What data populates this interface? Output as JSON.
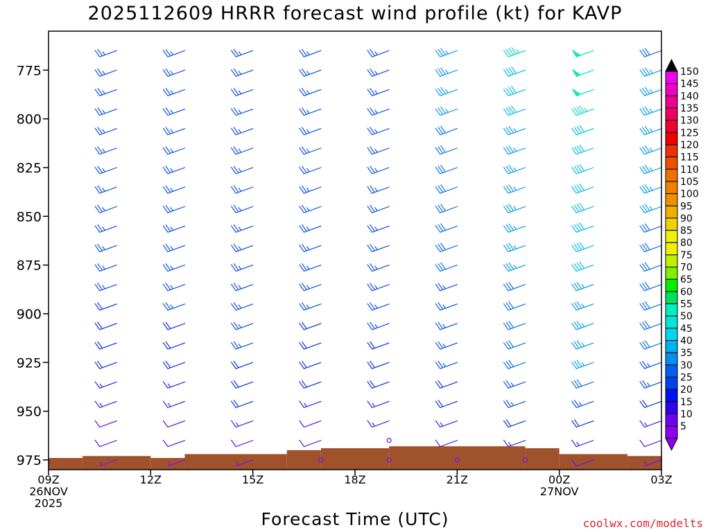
{
  "chart_data": {
    "type": "wind-barb-profile",
    "title": "2025112609 HRRR forecast wind profile (kt) for KAVP",
    "xlabel": "Forecast Time (UTC)",
    "ylabel": "",
    "credit": "coolwx.com/modelts",
    "x_ticks": [
      {
        "hour": 0,
        "lines": [
          "09Z",
          "26NOV",
          "2025"
        ]
      },
      {
        "hour": 3,
        "lines": [
          "12Z"
        ]
      },
      {
        "hour": 6,
        "lines": [
          "15Z"
        ]
      },
      {
        "hour": 9,
        "lines": [
          "18Z"
        ]
      },
      {
        "hour": 12,
        "lines": [
          "21Z"
        ]
      },
      {
        "hour": 15,
        "lines": [
          "00Z",
          "27NOV"
        ]
      },
      {
        "hour": 18,
        "lines": [
          "03Z"
        ]
      }
    ],
    "xlim": [
      0,
      18
    ],
    "ylim": [
      755,
      980
    ],
    "y_ticks": [
      775,
      800,
      825,
      850,
      875,
      900,
      925,
      950,
      975
    ],
    "barb_times": [
      2,
      4,
      6,
      8,
      10,
      12,
      14,
      16,
      18
    ],
    "pressure_levels": [
      765,
      775,
      785,
      795,
      805,
      815,
      825,
      835,
      845,
      855,
      865,
      875,
      885,
      895,
      905,
      915,
      925,
      935,
      945,
      955,
      965,
      975
    ],
    "wind_direction_deg": 250,
    "wind_speed_kt": [
      [
        25,
        25,
        25,
        25,
        25,
        25,
        25,
        25,
        25,
        25,
        25,
        25,
        25,
        20,
        20,
        20,
        20,
        15,
        15,
        10,
        10,
        5
      ],
      [
        25,
        25,
        25,
        25,
        25,
        25,
        25,
        25,
        25,
        25,
        25,
        25,
        25,
        25,
        20,
        20,
        20,
        15,
        15,
        10,
        10,
        5
      ],
      [
        25,
        25,
        25,
        25,
        25,
        25,
        25,
        25,
        25,
        25,
        25,
        25,
        25,
        25,
        25,
        25,
        20,
        20,
        20,
        15,
        10,
        5
      ],
      [
        25,
        25,
        25,
        25,
        25,
        25,
        25,
        25,
        25,
        25,
        25,
        25,
        25,
        25,
        20,
        20,
        20,
        20,
        15,
        10,
        10,
        0
      ],
      [
        25,
        25,
        25,
        25,
        25,
        25,
        25,
        25,
        25,
        25,
        25,
        25,
        25,
        25,
        25,
        20,
        20,
        20,
        15,
        15,
        0,
        0
      ],
      [
        35,
        35,
        35,
        35,
        30,
        30,
        30,
        30,
        30,
        30,
        30,
        30,
        25,
        25,
        25,
        25,
        25,
        20,
        20,
        15,
        10,
        0
      ],
      [
        45,
        40,
        40,
        40,
        35,
        35,
        35,
        35,
        35,
        35,
        35,
        35,
        30,
        30,
        30,
        30,
        30,
        25,
        25,
        20,
        15,
        0
      ],
      [
        50,
        50,
        50,
        45,
        40,
        40,
        40,
        40,
        40,
        40,
        40,
        40,
        35,
        35,
        35,
        35,
        35,
        30,
        25,
        20,
        15,
        10
      ],
      [
        30,
        35,
        35,
        35,
        35,
        35,
        35,
        35,
        35,
        30,
        30,
        30,
        30,
        30,
        30,
        30,
        25,
        25,
        20,
        15,
        10,
        5
      ]
    ],
    "terrain_surface": [
      {
        "from": 0,
        "to": 1,
        "p": 974
      },
      {
        "from": 1,
        "to": 3,
        "p": 973
      },
      {
        "from": 3,
        "to": 4,
        "p": 974
      },
      {
        "from": 4,
        "to": 7,
        "p": 972
      },
      {
        "from": 7,
        "to": 8,
        "p": 970
      },
      {
        "from": 8,
        "to": 10,
        "p": 969
      },
      {
        "from": 10,
        "to": 14,
        "p": 968
      },
      {
        "from": 14,
        "to": 15,
        "p": 969
      },
      {
        "from": 15,
        "to": 17,
        "p": 972
      },
      {
        "from": 17,
        "to": 18,
        "p": 973
      }
    ],
    "colorbar": {
      "labels": [
        "150",
        "145",
        "140",
        "135",
        "130",
        "125",
        "120",
        "115",
        "110",
        "105",
        "100",
        "95",
        "90",
        "85",
        "80",
        "75",
        "70",
        "65",
        "60",
        "55",
        "50",
        "45",
        "40",
        "35",
        "30",
        "25",
        "20",
        "15",
        "10",
        "5"
      ],
      "colors": [
        "#f000f0",
        "#f000c0",
        "#f00090",
        "#f00060",
        "#f00030",
        "#f00000",
        "#f03000",
        "#f05000",
        "#f07000",
        "#f08000",
        "#f09000",
        "#f0b000",
        "#f0d000",
        "#f0f000",
        "#f0f000",
        "#c0f000",
        "#80f000",
        "#00f000",
        "#00e060",
        "#00f0c0",
        "#00e8d8",
        "#00d8f0",
        "#00b0f0",
        "#0090f0",
        "#0060f0",
        "#0040f0",
        "#0010f0",
        "#3000f0",
        "#7000f0",
        "#9000f0"
      ],
      "top_color": "#000000",
      "bottom_color": "#9000f0"
    },
    "speed_colors": [
      {
        "max": 7.5,
        "color": "#7a18e8"
      },
      {
        "max": 12.5,
        "color": "#5a20e8"
      },
      {
        "max": 17.5,
        "color": "#3a30e8"
      },
      {
        "max": 22.5,
        "color": "#1840d8"
      },
      {
        "max": 27.5,
        "color": "#1d5ce0"
      },
      {
        "max": 32.5,
        "color": "#1b78e6"
      },
      {
        "max": 37.5,
        "color": "#1aa0e6"
      },
      {
        "max": 42.5,
        "color": "#18c0e0"
      },
      {
        "max": 47.5,
        "color": "#19d8d0"
      },
      {
        "max": 999,
        "color": "#12e8b8"
      }
    ],
    "terrain_color": "#a0522d"
  }
}
